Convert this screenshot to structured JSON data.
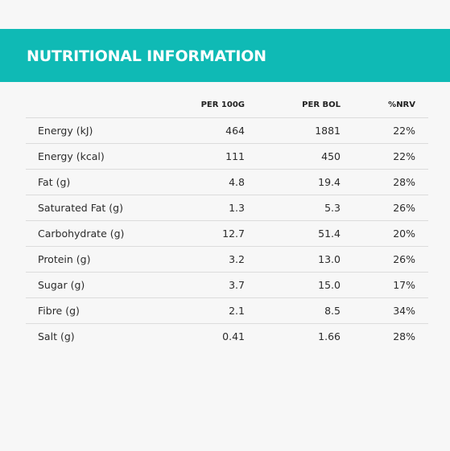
{
  "header": {
    "title": "NUTRITIONAL INFORMATION"
  },
  "colors": {
    "banner": "#0fbab5",
    "background": "#f7f7f7",
    "divider": "#dcdcdc"
  },
  "table": {
    "columns": [
      "",
      "PER 100G",
      "PER BOL",
      "%NRV"
    ],
    "rows": [
      {
        "nutrient": "Energy (kJ)",
        "per_100g": "464",
        "per_bol": "1881",
        "nrv": "22%"
      },
      {
        "nutrient": "Energy (kcal)",
        "per_100g": "111",
        "per_bol": "450",
        "nrv": "22%"
      },
      {
        "nutrient": "Fat (g)",
        "per_100g": "4.8",
        "per_bol": "19.4",
        "nrv": "28%"
      },
      {
        "nutrient": "Saturated Fat (g)",
        "per_100g": "1.3",
        "per_bol": "5.3",
        "nrv": "26%"
      },
      {
        "nutrient": "Carbohydrate (g)",
        "per_100g": "12.7",
        "per_bol": "51.4",
        "nrv": "20%"
      },
      {
        "nutrient": "Protein (g)",
        "per_100g": "3.2",
        "per_bol": "13.0",
        "nrv": "26%"
      },
      {
        "nutrient": "Sugar (g)",
        "per_100g": "3.7",
        "per_bol": "15.0",
        "nrv": "17%"
      },
      {
        "nutrient": "Fibre (g)",
        "per_100g": "2.1",
        "per_bol": "8.5",
        "nrv": "34%"
      },
      {
        "nutrient": "Salt (g)",
        "per_100g": "0.41",
        "per_bol": "1.66",
        "nrv": "28%"
      }
    ]
  }
}
